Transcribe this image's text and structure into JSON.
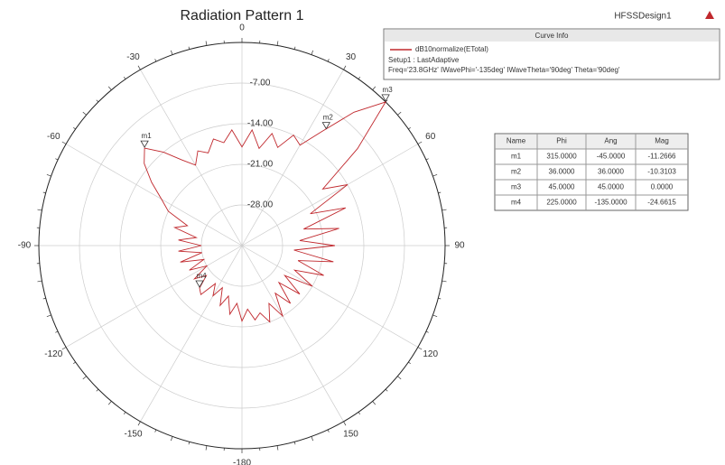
{
  "chart_data": {
    "type": "polar",
    "title": "Radiation Pattern 1",
    "design": "HFSSDesign1",
    "rlim": [
      -35,
      0
    ],
    "rticks": [
      {
        "value": -7,
        "label": "-7.00"
      },
      {
        "value": -14,
        "label": "-14.00"
      },
      {
        "value": -21,
        "label": "-21.00"
      },
      {
        "value": -28,
        "label": "-28.00"
      }
    ],
    "thetaticks": [
      0,
      30,
      60,
      90,
      120,
      150,
      -180,
      -150,
      -120,
      -90,
      -60,
      -30
    ],
    "grid": true,
    "legend_title": "Curve Info",
    "legend_lines": [
      "Setup1 : LastAdaptive",
      "Freq='23.8GHz' IWavePhi='-135deg' IWaveTheta='90deg' Theta='90deg'"
    ],
    "series": [
      {
        "name": "dB10normalize(ETotal)",
        "color": "#c0282d",
        "theta": [
          -180,
          -175,
          -170,
          -165,
          -160,
          -155,
          -150,
          -145,
          -140,
          -135,
          -130,
          -125,
          -120,
          -115,
          -110,
          -105,
          -100,
          -95,
          -90,
          -85,
          -80,
          -75,
          -70,
          -65,
          -60,
          -55,
          -50,
          -45,
          -40,
          -35,
          -30,
          -25,
          -20,
          -15,
          -10,
          -5,
          0,
          5,
          10,
          15,
          20,
          25,
          30,
          35,
          40,
          45,
          50,
          55,
          60,
          65,
          70,
          75,
          80,
          85,
          90,
          95,
          100,
          105,
          110,
          115,
          120,
          125,
          130,
          135,
          140,
          145,
          150,
          155,
          160,
          165,
          170,
          175
        ],
        "values": [
          -22,
          -25,
          -23,
          -26,
          -24,
          -27,
          -25,
          -27,
          -24,
          -24.66,
          -27,
          -25,
          -28,
          -25,
          -28,
          -24,
          -28,
          -24,
          -28,
          -24,
          -27,
          -23,
          -25,
          -21,
          -19,
          -16,
          -13,
          -11.27,
          -14,
          -17,
          -19,
          -17,
          -18,
          -16,
          -17,
          -15,
          -18,
          -15,
          -18,
          -15,
          -17,
          -14,
          -15,
          -11,
          -5,
          0,
          -9,
          -18,
          -14,
          -22,
          -16,
          -24,
          -18,
          -25,
          -19,
          -26,
          -19,
          -25,
          -20,
          -25,
          -21,
          -26,
          -22,
          -26,
          -22,
          -25,
          -21,
          -24,
          -21,
          -23,
          -22,
          -24
        ]
      }
    ],
    "marker_table": {
      "headers": [
        "Name",
        "Phi",
        "Ang",
        "Mag"
      ],
      "rows": [
        {
          "name": "m1",
          "phi": {
            "value": 315,
            "label": "315.0000"
          },
          "ang": {
            "value": -45,
            "label": "-45.0000"
          },
          "mag": {
            "value": -11.2666,
            "label": "-11.2666"
          }
        },
        {
          "name": "m2",
          "phi": {
            "value": 36,
            "label": "36.0000"
          },
          "ang": {
            "value": 36,
            "label": "36.0000"
          },
          "mag": {
            "value": -10.3103,
            "label": "-10.3103"
          }
        },
        {
          "name": "m3",
          "phi": {
            "value": 45,
            "label": "45.0000"
          },
          "ang": {
            "value": 45,
            "label": "45.0000"
          },
          "mag": {
            "value": 0,
            "label": "0.0000"
          }
        },
        {
          "name": "m4",
          "phi": {
            "value": 225,
            "label": "225.0000"
          },
          "ang": {
            "value": -135,
            "label": "-135.0000"
          },
          "mag": {
            "value": -24.6615,
            "label": "-24.6615"
          }
        }
      ]
    }
  }
}
